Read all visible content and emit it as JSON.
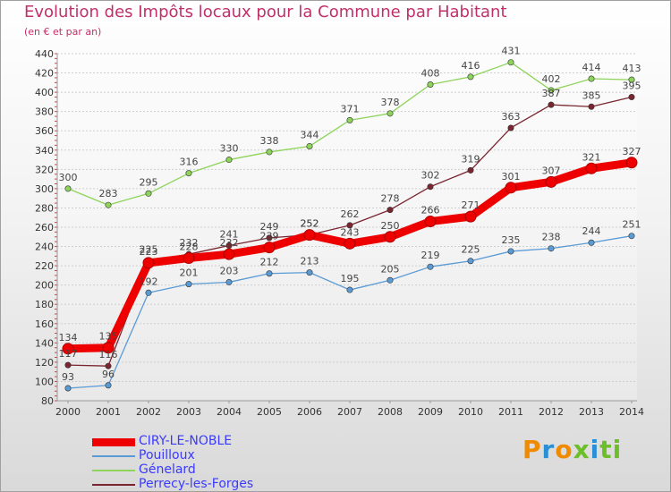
{
  "chart_data": {
    "type": "line",
    "title": "Evolution des Impôts locaux pour la Commune par Habitant",
    "subtitle": "(en € et par an)",
    "xlabel": "",
    "ylabel": "",
    "categories": [
      "2000",
      "2001",
      "2002",
      "2003",
      "2004",
      "2005",
      "2006",
      "2007",
      "2008",
      "2009",
      "2010",
      "2011",
      "2012",
      "2013",
      "2014"
    ],
    "ylim": [
      80,
      440
    ],
    "yticks": [
      80,
      100,
      120,
      140,
      160,
      180,
      200,
      220,
      240,
      260,
      280,
      300,
      320,
      340,
      360,
      380,
      400,
      420,
      440
    ],
    "series": [
      {
        "name": "Pouilloux",
        "color": "#5a9bd5",
        "values": [
          93,
          96,
          192,
          201,
          203,
          212,
          213,
          195,
          205,
          219,
          225,
          235,
          238,
          244,
          251
        ]
      },
      {
        "name": "Génelard",
        "color": "#8ed35a",
        "values": [
          300,
          283,
          295,
          316,
          330,
          338,
          344,
          371,
          378,
          408,
          416,
          431,
          402,
          414,
          413
        ]
      },
      {
        "name": "Perrecy-les-Forges",
        "color": "#7a2530",
        "values": [
          117,
          116,
          225,
          232,
          241,
          249,
          252,
          262,
          278,
          302,
          319,
          363,
          387,
          385,
          395
        ]
      },
      {
        "name": "CIRY-LE-NOBLE",
        "color": "#ee0000",
        "values": [
          134,
          135,
          223,
          228,
          232,
          239,
          252,
          243,
          250,
          266,
          271,
          301,
          307,
          321,
          327
        ]
      }
    ],
    "legend_position": "bottom-left"
  },
  "legend": [
    {
      "label": "CIRY-LE-NOBLE",
      "color": "#ee0000",
      "thickness": "thick"
    },
    {
      "label": "Pouilloux",
      "color": "#5a9bd5",
      "thickness": "thin"
    },
    {
      "label": "Génelard",
      "color": "#8ed35a",
      "thickness": "thin"
    },
    {
      "label": "Perrecy-les-Forges",
      "color": "#7a2530",
      "thickness": "thin"
    }
  ],
  "brand": {
    "letters": [
      "P",
      "r",
      "o",
      "x",
      "i",
      "t",
      "i"
    ],
    "colors": [
      "#f08a00",
      "#2a8fd6",
      "#f08a00",
      "#6cbf2a",
      "#2a8fd6",
      "#6cbf2a",
      "#6cbf2a"
    ]
  }
}
